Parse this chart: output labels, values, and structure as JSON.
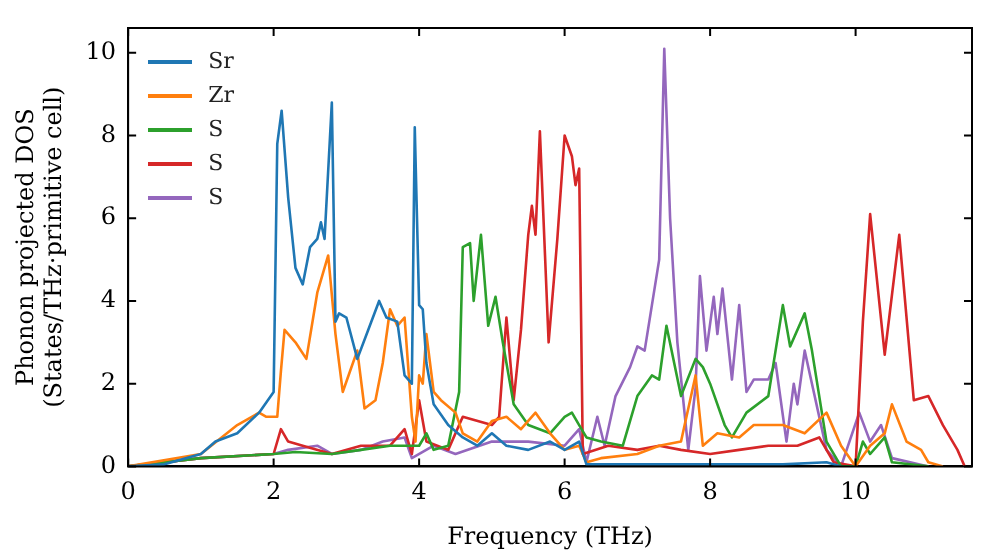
{
  "chart_data": {
    "type": "line",
    "xlabel": "Frequency (THz)",
    "ylabel": "Phonon projected DOS\n(States/THz·primitive cell)",
    "xlim": [
      0,
      11.6
    ],
    "ylim": [
      0,
      10.6
    ],
    "xticks": [
      0,
      2,
      4,
      6,
      8,
      10
    ],
    "yticks": [
      0,
      2,
      4,
      6,
      8,
      10
    ],
    "grid": false,
    "legend": "top left",
    "marker": "none",
    "line_style": "solid",
    "series": [
      {
        "name": "Sr",
        "color": "#1f77b4",
        "x": [
          0,
          0.5,
          1,
          1.2,
          1.5,
          1.8,
          2.0,
          2.05,
          2.11,
          2.2,
          2.3,
          2.4,
          2.5,
          2.6,
          2.65,
          2.7,
          2.8,
          2.85,
          2.9,
          3.0,
          3.15,
          3.3,
          3.45,
          3.55,
          3.7,
          3.8,
          3.9,
          3.94,
          4.0,
          4.05,
          4.1,
          4.2,
          4.4,
          4.6,
          4.8,
          5.0,
          5.2,
          5.5,
          5.8,
          6.0,
          6.2,
          6.3,
          7,
          8,
          9,
          9.6,
          9.8
        ],
        "values": [
          0,
          0.05,
          0.3,
          0.6,
          0.8,
          1.3,
          1.8,
          7.8,
          8.6,
          6.5,
          4.8,
          4.4,
          5.3,
          5.5,
          5.9,
          5.5,
          8.8,
          3.5,
          3.7,
          3.6,
          2.6,
          3.3,
          4.0,
          3.6,
          3.5,
          2.2,
          2.0,
          8.2,
          3.9,
          3.8,
          2.5,
          1.5,
          1.0,
          0.7,
          0.5,
          0.8,
          0.5,
          0.4,
          0.6,
          0.4,
          0.6,
          0.05,
          0.05,
          0.05,
          0.05,
          0.1,
          0
        ]
      },
      {
        "name": "Zr",
        "color": "#ff7f0e",
        "x": [
          0,
          1,
          1.5,
          1.8,
          1.9,
          2.05,
          2.1,
          2.15,
          2.3,
          2.45,
          2.6,
          2.75,
          2.85,
          2.95,
          3.05,
          3.15,
          3.25,
          3.4,
          3.5,
          3.6,
          3.7,
          3.8,
          3.9,
          3.95,
          4.0,
          4.05,
          4.1,
          4.2,
          4.3,
          4.5,
          4.6,
          4.8,
          5.0,
          5.2,
          5.4,
          5.6,
          5.8,
          6.0,
          6.2,
          6.3,
          6.5,
          7.0,
          7.3,
          7.6,
          7.8,
          7.9,
          8.1,
          8.4,
          8.6,
          9.0,
          9.3,
          9.6,
          9.8,
          10.0,
          10.2,
          10.4,
          10.5,
          10.7,
          10.9,
          11.0,
          11.2
        ],
        "values": [
          0,
          0.3,
          1.0,
          1.3,
          1.2,
          1.2,
          2.3,
          3.3,
          3.0,
          2.6,
          4.2,
          5.1,
          3.2,
          1.8,
          2.3,
          2.8,
          1.4,
          1.6,
          2.5,
          3.8,
          3.4,
          3.6,
          1.2,
          0.6,
          2.2,
          2.0,
          3.2,
          1.8,
          1.6,
          1.3,
          0.8,
          0.6,
          1.1,
          1.2,
          0.9,
          1.3,
          0.8,
          0.4,
          0.5,
          0.1,
          0.2,
          0.3,
          0.5,
          0.6,
          2.2,
          0.5,
          0.8,
          0.7,
          1.0,
          1.0,
          0.8,
          1.3,
          0.5,
          0,
          0.5,
          0.8,
          1.5,
          0.6,
          0.4,
          0.1,
          0
        ]
      },
      {
        "name": "S",
        "color": "#2ca02c",
        "x": [
          0,
          1,
          2,
          2.3,
          2.8,
          3.2,
          3.6,
          4.0,
          4.1,
          4.2,
          4.4,
          4.55,
          4.6,
          4.7,
          4.75,
          4.85,
          4.95,
          5.05,
          5.15,
          5.3,
          5.5,
          5.8,
          6.0,
          6.1,
          6.2,
          6.3,
          6.5,
          6.8,
          7.0,
          7.2,
          7.3,
          7.4,
          7.6,
          7.8,
          7.9,
          8.0,
          8.2,
          8.3,
          8.5,
          8.8,
          9.0,
          9.1,
          9.3,
          9.4,
          9.6,
          9.8,
          10.0,
          10.1,
          10.2,
          10.4,
          10.5,
          11
        ],
        "values": [
          0,
          0.2,
          0.3,
          0.35,
          0.3,
          0.4,
          0.5,
          0.5,
          0.8,
          0.4,
          0.5,
          1.8,
          5.3,
          5.4,
          4.0,
          5.6,
          3.4,
          4.1,
          3.0,
          1.5,
          1.0,
          0.8,
          1.2,
          1.3,
          1.0,
          0.7,
          0.6,
          0.5,
          1.7,
          2.2,
          2.1,
          3.4,
          1.7,
          2.6,
          2.4,
          2.0,
          1.0,
          0.7,
          1.3,
          1.7,
          3.9,
          2.9,
          3.7,
          2.8,
          0.6,
          0,
          0,
          0.6,
          0.3,
          0.7,
          0.1,
          0
        ]
      },
      {
        "name": "S",
        "color": "#d62728",
        "x": [
          0,
          1,
          2,
          2.1,
          2.2,
          2.4,
          2.8,
          3.2,
          3.6,
          3.8,
          3.9,
          4.0,
          4.1,
          4.4,
          4.6,
          5.0,
          5.1,
          5.2,
          5.3,
          5.4,
          5.5,
          5.55,
          5.6,
          5.66,
          5.78,
          5.9,
          6.0,
          6.1,
          6.15,
          6.2,
          6.25,
          6.6,
          7.0,
          7.3,
          7.6,
          8.0,
          8.4,
          8.8,
          9.2,
          9.5,
          9.7,
          10.0,
          10.1,
          10.2,
          10.4,
          10.6,
          10.8,
          11.0,
          11.2,
          11.4,
          11.5
        ],
        "values": [
          0,
          0.2,
          0.3,
          0.9,
          0.6,
          0.5,
          0.3,
          0.5,
          0.5,
          0.9,
          0.3,
          1.6,
          0.6,
          0.4,
          1.2,
          1.0,
          1.2,
          3.6,
          1.6,
          3.3,
          5.6,
          6.3,
          5.6,
          8.1,
          3.0,
          5.5,
          8.0,
          7.5,
          6.8,
          7.2,
          0.3,
          0.5,
          0.4,
          0.5,
          0.4,
          0.3,
          0.4,
          0.5,
          0.5,
          0.7,
          0.1,
          0,
          3.5,
          6.1,
          2.7,
          5.6,
          1.6,
          1.7,
          1.0,
          0.4,
          0
        ]
      },
      {
        "name": "S",
        "color": "#9467bd",
        "x": [
          0,
          1,
          2,
          2.2,
          2.6,
          2.8,
          3.2,
          3.5,
          3.8,
          3.9,
          4.2,
          4.5,
          5.0,
          5.5,
          6.0,
          6.2,
          6.3,
          6.45,
          6.55,
          6.7,
          6.9,
          7.0,
          7.1,
          7.2,
          7.3,
          7.37,
          7.45,
          7.55,
          7.7,
          7.8,
          7.86,
          7.95,
          8.05,
          8.1,
          8.17,
          8.3,
          8.4,
          8.5,
          8.6,
          8.8,
          8.9,
          9.05,
          9.15,
          9.2,
          9.3,
          9.4,
          9.6,
          9.8,
          10.05,
          10.2,
          10.35,
          10.5,
          11
        ],
        "values": [
          0,
          0.2,
          0.3,
          0.4,
          0.5,
          0.3,
          0.4,
          0.6,
          0.7,
          0.2,
          0.5,
          0.3,
          0.6,
          0.6,
          0.5,
          0.9,
          0.1,
          1.2,
          0.5,
          1.7,
          2.4,
          2.9,
          2.8,
          3.9,
          5.0,
          10.1,
          6.0,
          3.0,
          0.4,
          1.9,
          4.6,
          2.8,
          4.1,
          3.2,
          4.3,
          2.1,
          3.9,
          1.8,
          2.1,
          2.1,
          2.5,
          0.6,
          2.0,
          1.5,
          2.8,
          2.0,
          0.4,
          0,
          1.3,
          0.6,
          1.0,
          0.2,
          0
        ]
      }
    ]
  }
}
